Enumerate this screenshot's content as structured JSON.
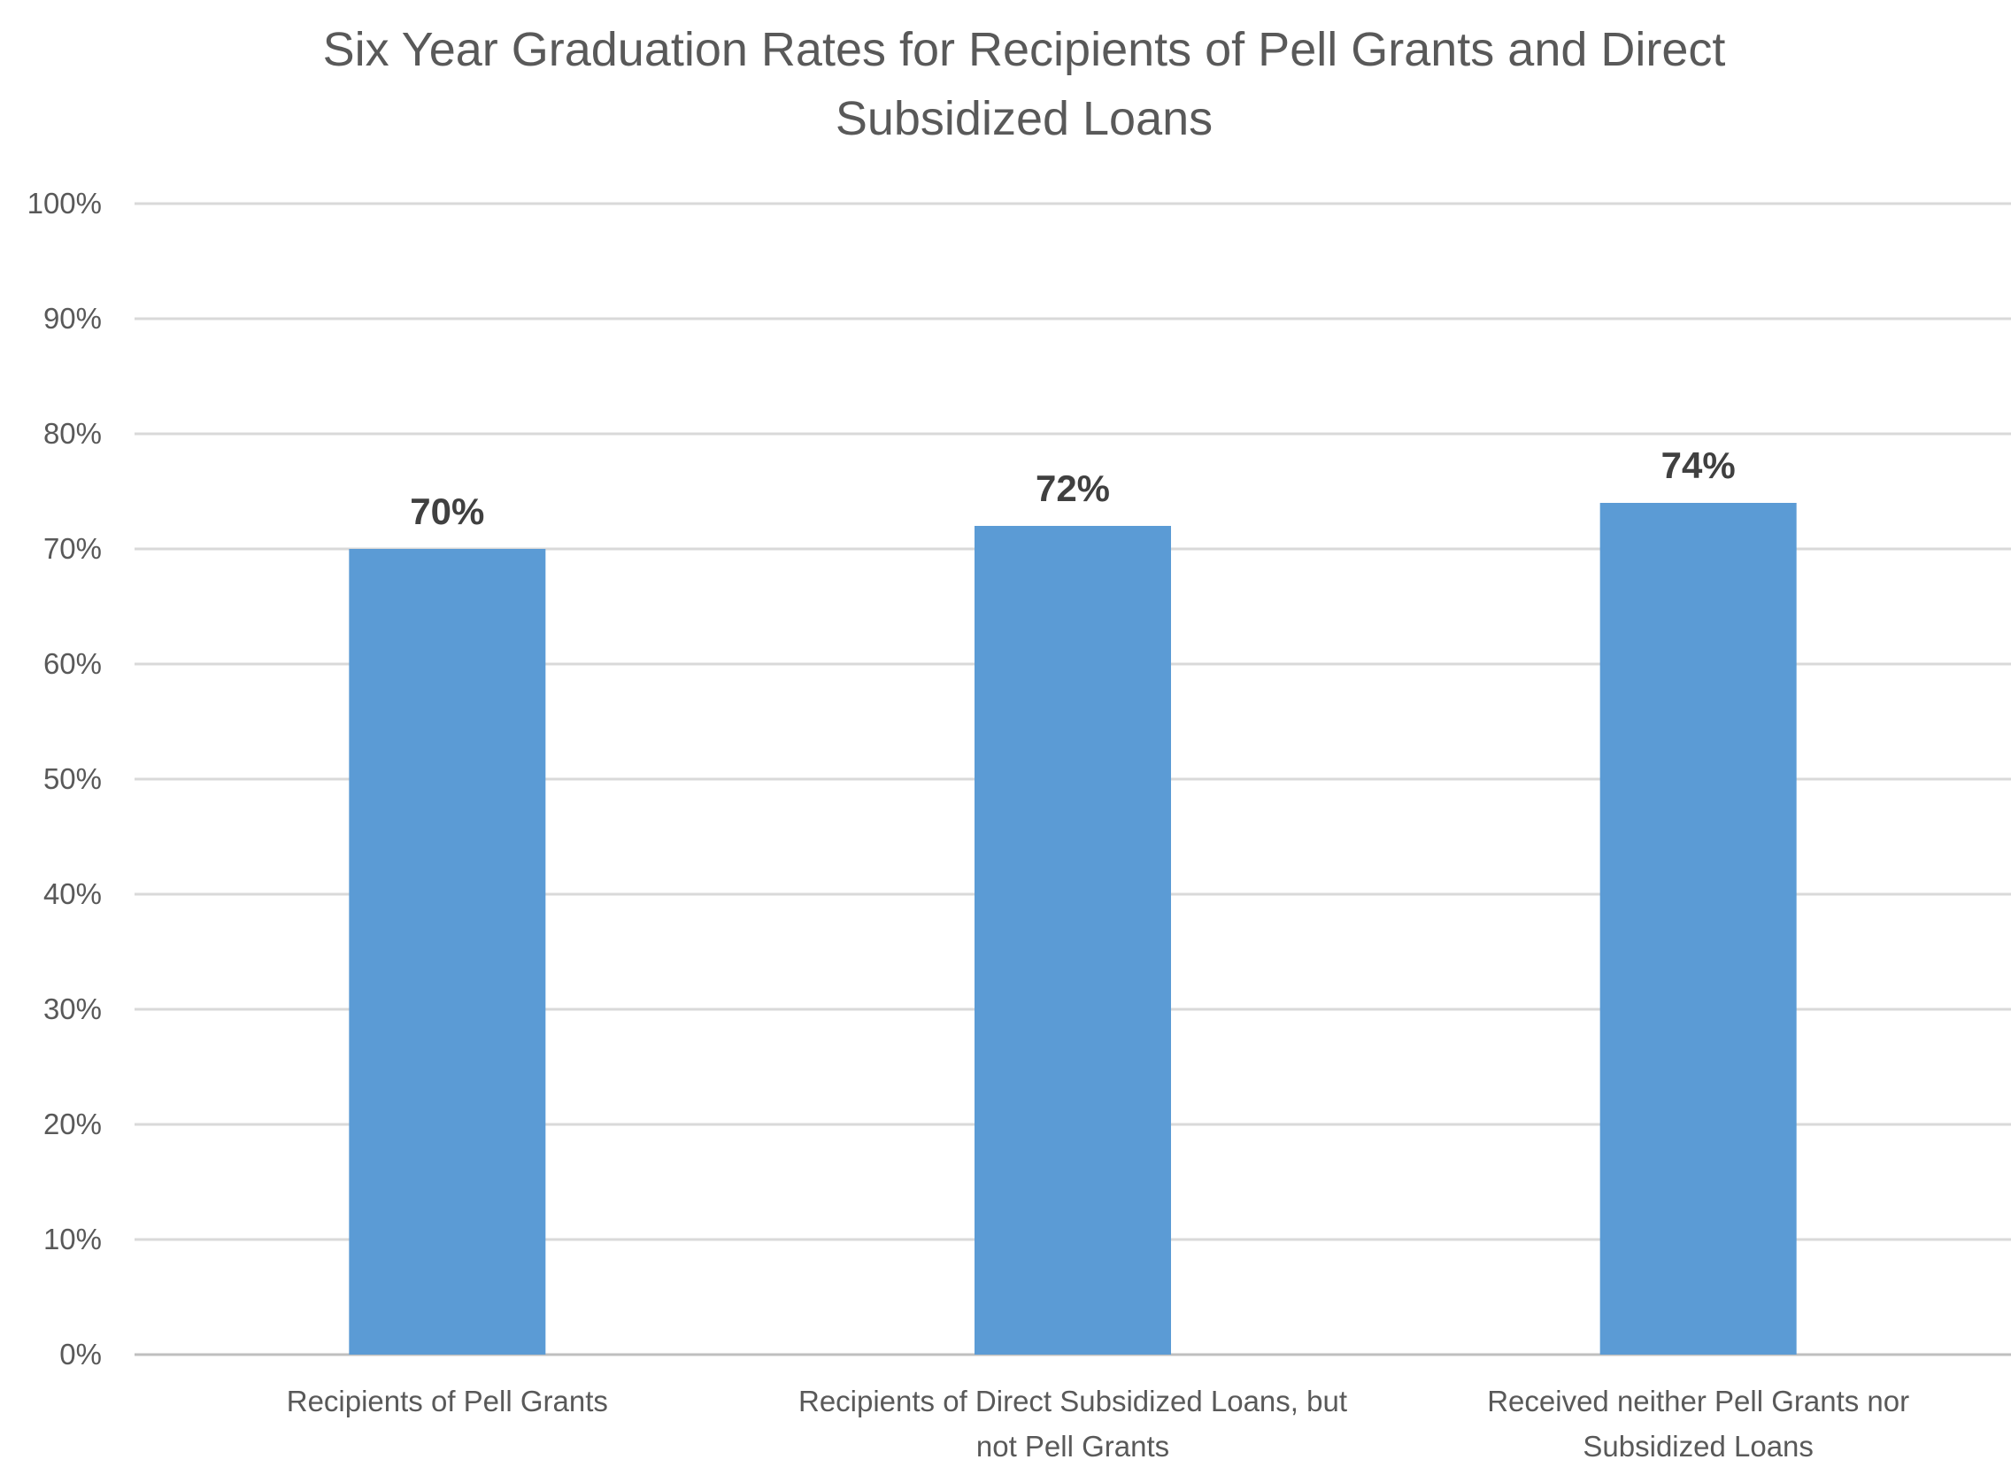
{
  "chart_data": {
    "type": "bar",
    "title_lines": [
      "Six Year Graduation Rates for Recipients of Pell Grants and Direct",
      "Subsidized Loans"
    ],
    "categories": [
      [
        "Recipients of Pell Grants"
      ],
      [
        "Recipients of Direct Subsidized Loans, but",
        "not Pell Grants"
      ],
      [
        "Received neither Pell Grants nor",
        "Subsidized Loans"
      ]
    ],
    "values": [
      70,
      72,
      74
    ],
    "data_labels": [
      "70%",
      "72%",
      "74%"
    ],
    "xlabel": "",
    "ylabel": "",
    "ylim": [
      0,
      100
    ],
    "yticks": [
      0,
      10,
      20,
      30,
      40,
      50,
      60,
      70,
      80,
      90,
      100
    ],
    "ytick_labels": [
      "0%",
      "10%",
      "20%",
      "30%",
      "40%",
      "50%",
      "60%",
      "70%",
      "80%",
      "90%",
      "100%"
    ],
    "grid": true,
    "legend": "none",
    "colors": {
      "bar": "#5b9bd5"
    }
  }
}
